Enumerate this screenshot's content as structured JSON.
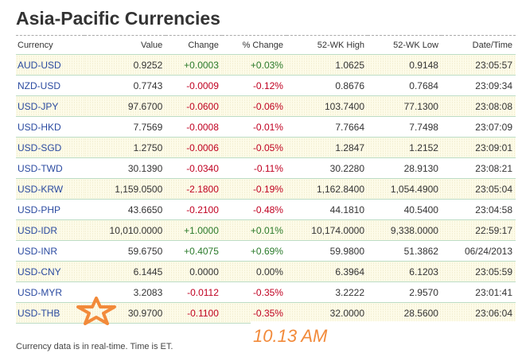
{
  "title": "Asia-Pacific Currencies",
  "headers": [
    "Currency",
    "Value",
    "Change",
    "% Change",
    "52-WK High",
    "52-WK Low",
    "Date/Time"
  ],
  "rows": [
    [
      "AUD-USD",
      "0.9252",
      "+0.0003",
      "+0.03%",
      "1.0625",
      "0.9148",
      "23:05:57"
    ],
    [
      "NZD-USD",
      "0.7743",
      "-0.0009",
      "-0.12%",
      "0.8676",
      "0.7684",
      "23:09:34"
    ],
    [
      "USD-JPY",
      "97.6700",
      "-0.0600",
      "-0.06%",
      "103.7400",
      "77.1300",
      "23:08:08"
    ],
    [
      "USD-HKD",
      "7.7569",
      "-0.0008",
      "-0.01%",
      "7.7664",
      "7.7498",
      "23:07:09"
    ],
    [
      "USD-SGD",
      "1.2750",
      "-0.0006",
      "-0.05%",
      "1.2847",
      "1.2152",
      "23:09:01"
    ],
    [
      "USD-TWD",
      "30.1390",
      "-0.0340",
      "-0.11%",
      "30.2280",
      "28.9130",
      "23:08:21"
    ],
    [
      "USD-KRW",
      "1,159.0500",
      "-2.1800",
      "-0.19%",
      "1,162.8400",
      "1,054.4900",
      "23:05:04"
    ],
    [
      "USD-PHP",
      "43.6650",
      "-0.2100",
      "-0.48%",
      "44.1810",
      "40.5400",
      "23:04:58"
    ],
    [
      "USD-IDR",
      "10,010.0000",
      "+1.0000",
      "+0.01%",
      "10,174.0000",
      "9,338.0000",
      "22:59:17"
    ],
    [
      "USD-INR",
      "59.6750",
      "+0.4075",
      "+0.69%",
      "59.9800",
      "51.3862",
      "06/24/2013"
    ],
    [
      "USD-CNY",
      "6.1445",
      "0.0000",
      "0.00%",
      "6.3964",
      "6.1203",
      "23:05:59"
    ],
    [
      "USD-MYR",
      "3.2083",
      "-0.0112",
      "-0.35%",
      "3.2222",
      "2.9570",
      "23:01:41"
    ],
    [
      "USD-THB",
      "30.9700",
      "-0.1100",
      "-0.35%",
      "32.0000",
      "28.5600",
      "23:06:04"
    ]
  ],
  "footnote": "Currency data is in real-time. Time is ET.",
  "annotation": "10.13 AM",
  "colors": {
    "positive": "#2a7a2a",
    "negative": "#c00020",
    "link": "#2a4aa0",
    "annotation": "#f28a3a"
  }
}
